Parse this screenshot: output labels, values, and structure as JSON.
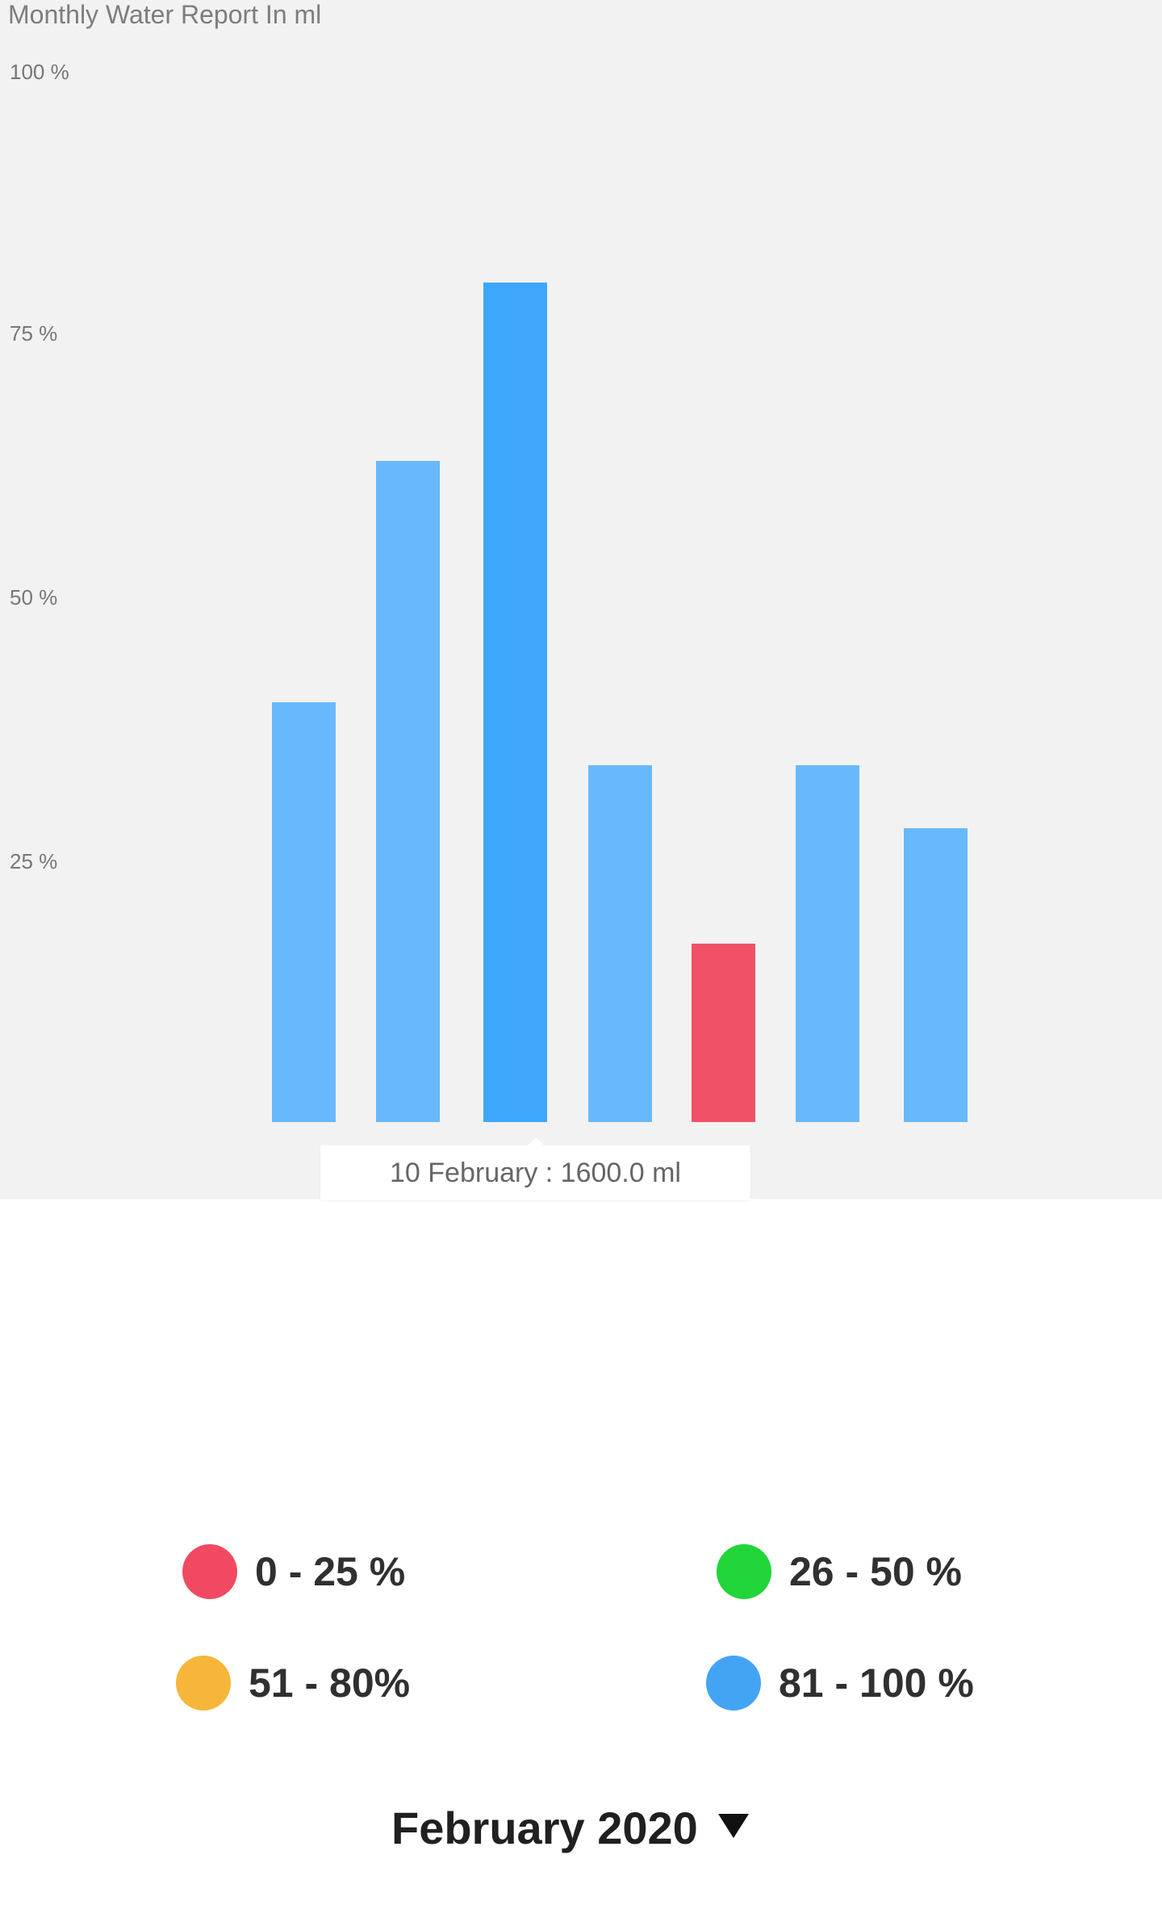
{
  "chart": {
    "title": "Monthly Water Report In ml",
    "tooltip_text": "10 February : 1600.0 ml"
  },
  "chart_data": {
    "type": "bar",
    "title": "Monthly Water Report In ml",
    "xlabel": "",
    "ylabel": "",
    "ylim": [
      0,
      100
    ],
    "y_ticks": [
      "100 %",
      "75 %",
      "50 %",
      "25 %"
    ],
    "grid": false,
    "series": [
      {
        "values": [
          40,
          63,
          80,
          34,
          17,
          34,
          28
        ],
        "colors": [
          "#68b9fb",
          "#68b9fb",
          "#3ea7fb",
          "#68b9fb",
          "#f05066",
          "#68b9fb",
          "#68b9fb"
        ]
      }
    ],
    "annotations": [
      {
        "text": "10 February : 1600.0 ml"
      }
    ]
  },
  "legend": {
    "items": [
      {
        "label": "0 - 25 %",
        "color": "#f24962"
      },
      {
        "label": "26 - 50 %",
        "color": "#22d53b"
      },
      {
        "label": "51 - 80%",
        "color": "#f5b63a"
      },
      {
        "label": "81 - 100 %",
        "color": "#44a4f4"
      }
    ]
  },
  "month_selector": {
    "label": "February 2020",
    "icon": "triangle-down-icon"
  }
}
